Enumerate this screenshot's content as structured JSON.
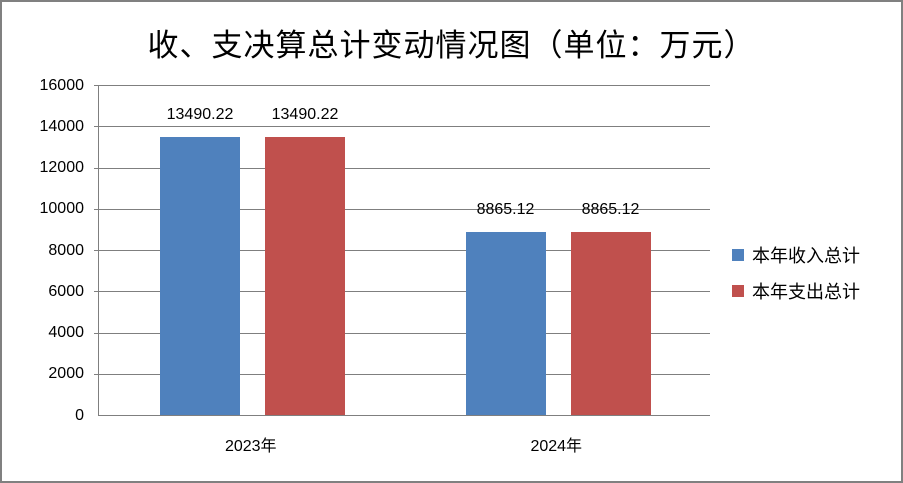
{
  "chart_data": {
    "type": "bar",
    "title": "收、支决算总计变动情况图（单位：万元）",
    "categories": [
      "2023年",
      "2024年"
    ],
    "series": [
      {
        "name": "本年收入总计",
        "color": "#4F81BD",
        "values": [
          13490.22,
          8865.12
        ],
        "data_labels": [
          "13490.22",
          "8865.12"
        ]
      },
      {
        "name": "本年支出总计",
        "color": "#C0504D",
        "values": [
          13490.22,
          8865.12
        ],
        "data_labels": [
          "13490.22",
          "8865.12"
        ]
      }
    ],
    "xlabel": "",
    "ylabel": "",
    "ylim": [
      0,
      16000
    ],
    "ytick_step": 2000,
    "yticks": [
      0,
      2000,
      4000,
      6000,
      8000,
      10000,
      12000,
      14000,
      16000
    ],
    "grid": true,
    "legend_position": "right",
    "colors": {
      "background": "#FFFFFF",
      "outer_border": "#808080",
      "gridline": "#7F7F7F",
      "axis_line": "#7F7F7F",
      "text": "#000000"
    }
  }
}
